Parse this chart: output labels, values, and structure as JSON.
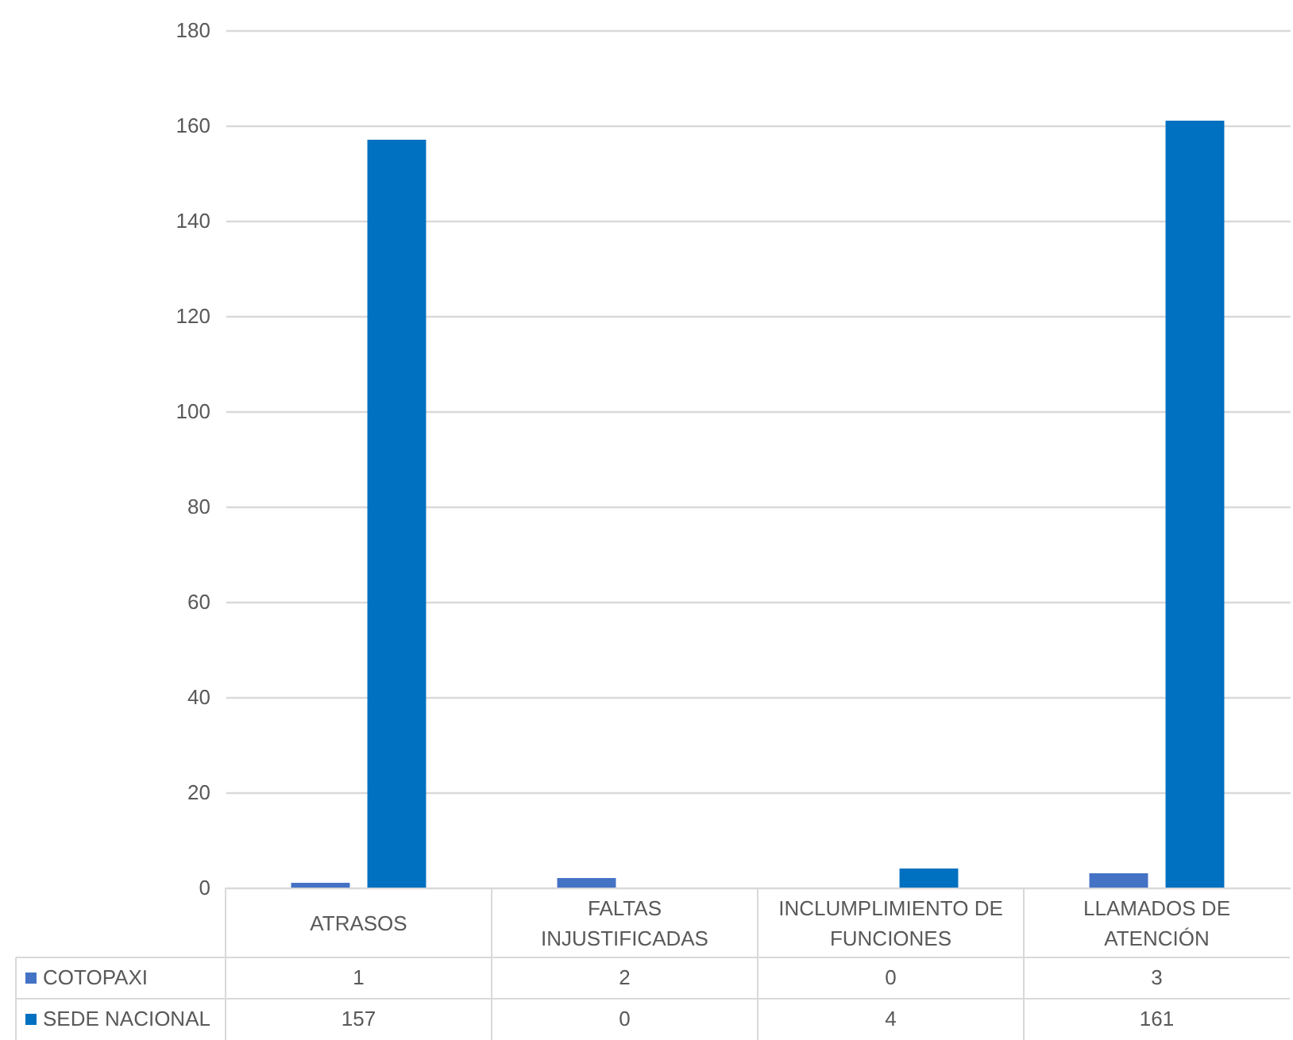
{
  "chart_data": {
    "type": "bar",
    "categories": [
      "ATRASOS",
      "FALTAS INJUSTIFICADAS",
      "INCLUMPLIMIENTO DE FUNCIONES",
      "LLAMADOS DE ATENCIÓN"
    ],
    "series": [
      {
        "name": "COTOPAXI",
        "color": "#4472c4",
        "values": [
          1,
          2,
          0,
          3
        ]
      },
      {
        "name": "SEDE NACIONAL",
        "color": "#0070c0",
        "values": [
          157,
          0,
          4,
          161
        ]
      }
    ],
    "ylim": [
      0,
      180
    ],
    "yticks": [
      0,
      20,
      40,
      60,
      80,
      100,
      120,
      140,
      160,
      180
    ],
    "grid": "y",
    "legend": "bottom left",
    "data_labels": true
  }
}
